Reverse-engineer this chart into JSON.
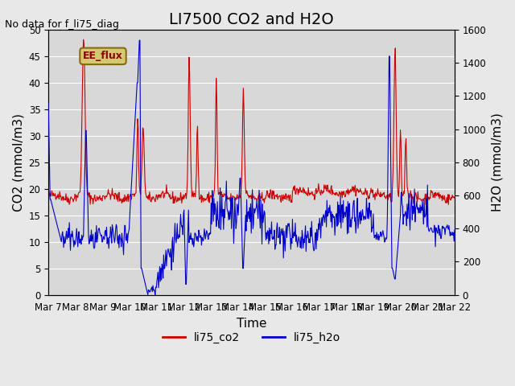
{
  "title": "LI7500 CO2 and H2O",
  "top_left_text": "No data for f_li75_diag",
  "ylabel_left": "CO2 (mmol/m3)",
  "ylabel_right": "H2O (mmol/m3)",
  "xlabel": "Time",
  "ylim_left": [
    0,
    50
  ],
  "ylim_right": [
    0,
    1600
  ],
  "xtick_labels": [
    "Mar 7",
    "Mar 8",
    "Mar 9",
    "Mar 10",
    "Mar 11",
    "Mar 12",
    "Mar 13",
    "Mar 14",
    "Mar 15",
    "Mar 16",
    "Mar 17",
    "Mar 18",
    "Mar 19",
    "Mar 20",
    "Mar 21",
    "Mar 22"
  ],
  "co2_color": "#cc0000",
  "h2o_color": "#0000cc",
  "background_color": "#e8e8e8",
  "plot_bg_color": "#d8d8d8",
  "legend_label_co2": "li75_co2",
  "legend_label_h2o": "li75_h2o",
  "ee_flux_label": "EE_flux",
  "ee_flux_bg": "#d4c870",
  "ee_flux_border": "#8b6914",
  "title_fontsize": 14,
  "axis_fontsize": 11,
  "tick_fontsize": 8.5,
  "legend_fontsize": 10
}
